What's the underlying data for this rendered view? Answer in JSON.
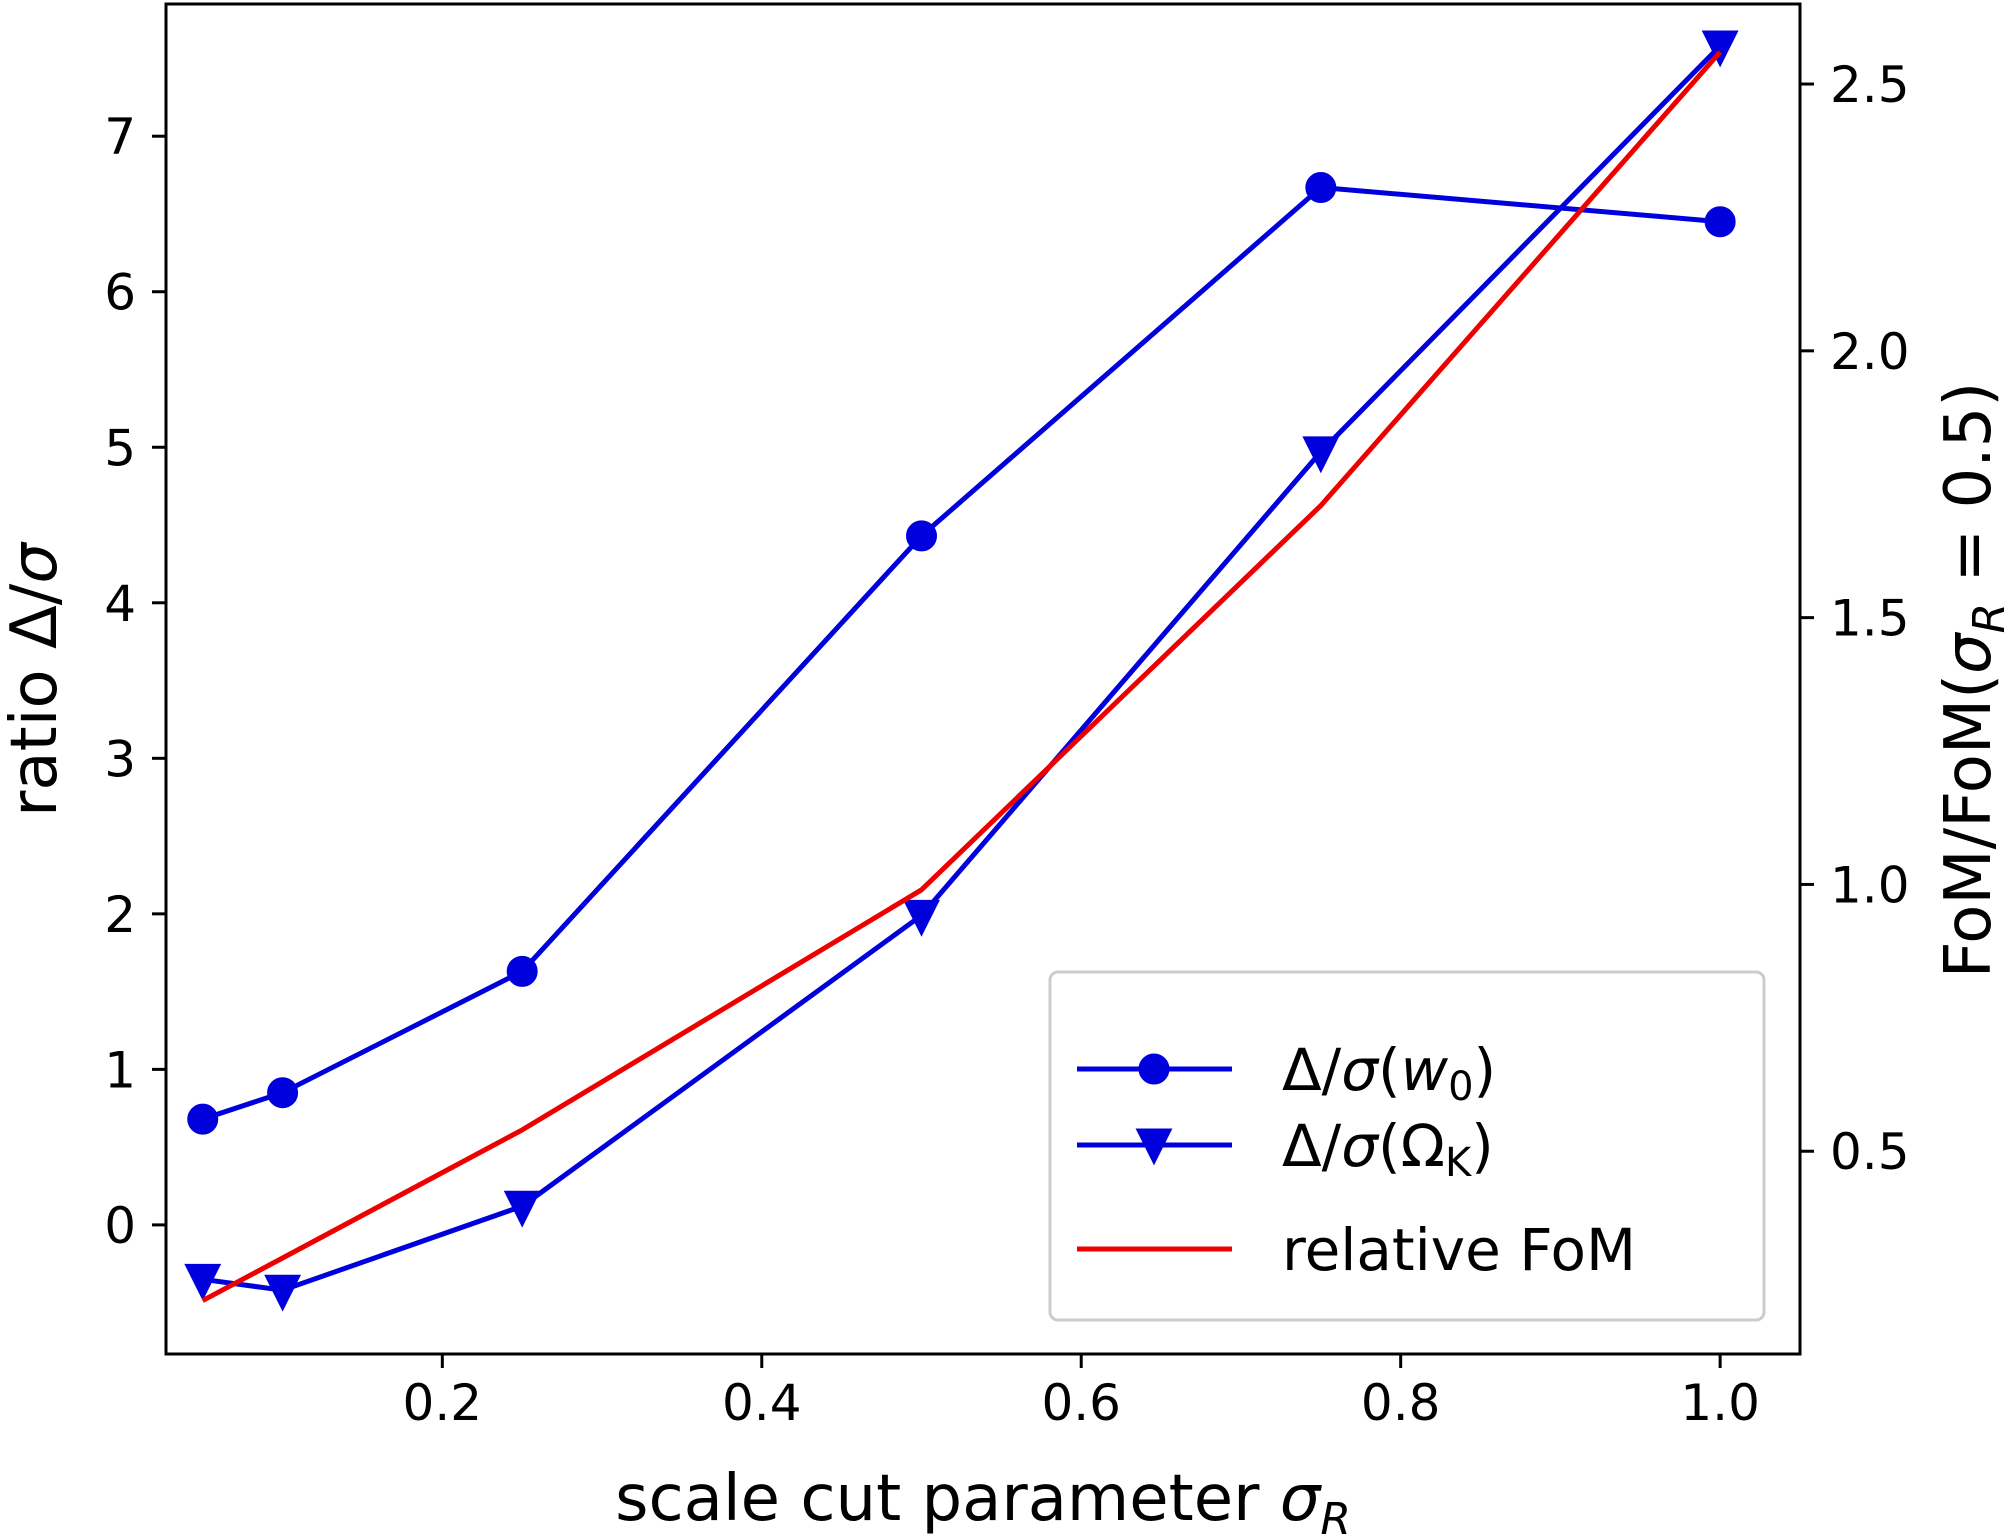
{
  "chart_data": {
    "type": "line",
    "xlabel": "scale cut parameter σR",
    "ylabel": "ratio Δ/σ",
    "ylabel_right": "FoM/FoM(σR = 0.5)",
    "xlim": [
      0.027,
      1.05
    ],
    "ylim": [
      -0.83,
      7.85
    ],
    "ylim_right": [
      0.12,
      2.65
    ],
    "x_ticks": [
      "0.2",
      "0.4",
      "0.6",
      "0.8",
      "1.0"
    ],
    "x_tick_values": [
      0.2,
      0.4,
      0.6,
      0.8,
      1.0
    ],
    "y_ticks": [
      "0",
      "1",
      "2",
      "3",
      "4",
      "5",
      "6",
      "7"
    ],
    "y_tick_values": [
      0,
      1,
      2,
      3,
      4,
      5,
      6,
      7
    ],
    "y_right_ticks": [
      "0.5",
      "1.0",
      "1.5",
      "2.0",
      "2.5"
    ],
    "y_right_tick_values": [
      0.5,
      1.0,
      1.5,
      2.0,
      2.5
    ],
    "grid": false,
    "legend_position": "bottom-right",
    "series": [
      {
        "name": "Δ/σ(w0)",
        "axis": "left",
        "marker": "circle",
        "color": "#0000dd",
        "x": [
          0.05,
          0.1,
          0.25,
          0.5,
          0.75,
          1.0
        ],
        "y": [
          0.68,
          0.85,
          1.63,
          4.43,
          6.67,
          6.45
        ]
      },
      {
        "name": "Δ/σ(ΩK)",
        "axis": "left",
        "marker": "triangle-down",
        "color": "#0000dd",
        "x": [
          0.05,
          0.1,
          0.25,
          0.5,
          0.75,
          1.0
        ],
        "y": [
          -0.35,
          -0.42,
          0.12,
          1.99,
          4.97,
          7.58
        ]
      },
      {
        "name": "relative FoM",
        "axis": "right",
        "marker": "none",
        "color": "#ee0000",
        "x": [
          0.05,
          0.1,
          0.25,
          0.5,
          0.75,
          1.0
        ],
        "y": [
          0.22,
          0.3,
          0.54,
          0.99,
          1.71,
          2.56
        ]
      }
    ]
  }
}
